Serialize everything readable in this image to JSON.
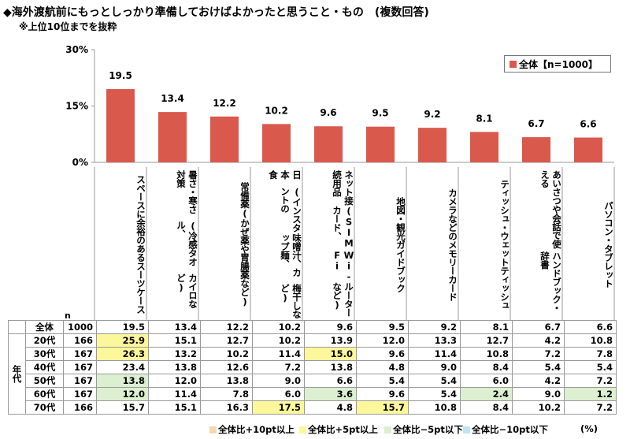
{
  "header": {
    "title": "◆海外渡航前にもっとしっかり準備しておけばよかったと思うこと・もの　(複数回答)",
    "subtitle": "※上位10位までを抜粋"
  },
  "legend": {
    "label": "全体【n=1000】",
    "color": "#d9594c"
  },
  "chart_data": {
    "type": "bar",
    "title": "◆海外渡航前にもっとしっかり準備しておけばよかったと思うこと・もの　(複数回答)",
    "ylim": [
      0,
      30
    ],
    "yticks": [
      "0%",
      "15%",
      "30%"
    ],
    "ytick_values": [
      0,
      15,
      30
    ],
    "legend_position": "top-right",
    "grid": false,
    "categories": [
      "スペースに余裕のあるスーツケース",
      "暑さ・寒さ対策(冷感タオル、カイロなど)",
      "常備薬(かぜ薬や胃腸薬など)",
      "日本食(インスタントの味噌汁、カップ麺、梅干しなど)",
      "ネット接続用品(SIMカード、Wi-Fiルーターなど)",
      "地図・観光ガイドブック",
      "カメラなどのメモリーカード",
      "ティッシュ・ウェットティッシュ",
      "あいさつや会話で使えるハンドブック・辞書",
      "パソコン・タブレット"
    ],
    "series": [
      {
        "name": "全体【n=1000】",
        "values": [
          19.5,
          13.4,
          12.2,
          10.2,
          9.6,
          9.5,
          9.2,
          8.1,
          6.7,
          6.6
        ]
      }
    ],
    "bar_color": "#d9594c"
  },
  "category_lines": [
    [
      "スペースに余裕のある",
      "スーツケース"
    ],
    [
      "暑さ・寒さ対策",
      "(冷感タオル、",
      "カイロなど)"
    ],
    [
      "常備薬",
      "(かぜ薬や",
      "胃腸薬など)"
    ],
    [
      "日本食",
      "(インスタントの",
      "味噌汁、カップ麺、",
      "梅干しなど)"
    ],
    [
      "ネット接続用品",
      "(SIMカード、",
      "Wi-Fi",
      "ルーターなど)"
    ],
    [
      "地図・観光ガイドブック"
    ],
    [
      "カメラなどの",
      "メモリーカード"
    ],
    [
      "ティッシュ・",
      "ウェットティッシュ"
    ],
    [
      "あいさつや会話で使える",
      "ハンドブック・辞書"
    ],
    [
      "パソコン・タブレット"
    ]
  ],
  "table": {
    "n_header": "n",
    "group_label": "年代",
    "rows": [
      {
        "label": "全体",
        "n": "1000",
        "values": [
          "19.5",
          "13.4",
          "12.2",
          "10.2",
          "9.6",
          "9.5",
          "9.2",
          "8.1",
          "6.7",
          "6.6"
        ],
        "flags": [
          "",
          "",
          "",
          "",
          "",
          "",
          "",
          "",
          "",
          ""
        ]
      },
      {
        "label": "20代",
        "n": "166",
        "values": [
          "25.9",
          "15.1",
          "12.7",
          "10.2",
          "13.9",
          "12.0",
          "13.3",
          "12.7",
          "4.2",
          "10.8"
        ],
        "flags": [
          "hi5",
          "",
          "",
          "",
          "",
          "",
          "",
          "",
          "",
          ""
        ]
      },
      {
        "label": "30代",
        "n": "167",
        "values": [
          "26.3",
          "13.2",
          "10.2",
          "11.4",
          "15.0",
          "9.6",
          "11.4",
          "10.8",
          "7.2",
          "7.8"
        ],
        "flags": [
          "hi5",
          "",
          "",
          "",
          "hi5",
          "",
          "",
          "",
          "",
          ""
        ]
      },
      {
        "label": "40代",
        "n": "167",
        "values": [
          "23.4",
          "13.8",
          "12.6",
          "7.2",
          "13.8",
          "4.8",
          "9.0",
          "8.4",
          "5.4",
          "5.4"
        ],
        "flags": [
          "",
          "",
          "",
          "",
          "",
          "",
          "",
          "",
          "",
          ""
        ]
      },
      {
        "label": "50代",
        "n": "167",
        "values": [
          "13.8",
          "12.0",
          "13.8",
          "9.0",
          "6.6",
          "5.4",
          "5.4",
          "6.0",
          "4.2",
          "7.2"
        ],
        "flags": [
          "lo5",
          "",
          "",
          "",
          "",
          "",
          "",
          "",
          "",
          ""
        ]
      },
      {
        "label": "60代",
        "n": "167",
        "values": [
          "12.0",
          "11.4",
          "7.8",
          "6.0",
          "3.6",
          "9.6",
          "5.4",
          "2.4",
          "9.0",
          "1.2"
        ],
        "flags": [
          "lo5",
          "",
          "",
          "",
          "lo5",
          "",
          "",
          "lo5",
          "",
          "lo5"
        ]
      },
      {
        "label": "70代",
        "n": "166",
        "values": [
          "15.7",
          "15.1",
          "16.3",
          "17.5",
          "4.8",
          "15.7",
          "10.8",
          "8.4",
          "10.2",
          "7.2"
        ],
        "flags": [
          "",
          "",
          "",
          "hi5",
          "",
          "hi5",
          "",
          "",
          "",
          ""
        ]
      }
    ]
  },
  "footer": {
    "items": [
      {
        "label": "全体比+10pt以上",
        "color": "#f8d7b5"
      },
      {
        "label": "全体比+5pt以上",
        "color": "#fdf79c"
      },
      {
        "label": "全体比−5pt以下",
        "color": "#dcefd0"
      },
      {
        "label": "全体比−10pt以下",
        "color": "#bfe5f2"
      }
    ],
    "unit": "(%)"
  }
}
